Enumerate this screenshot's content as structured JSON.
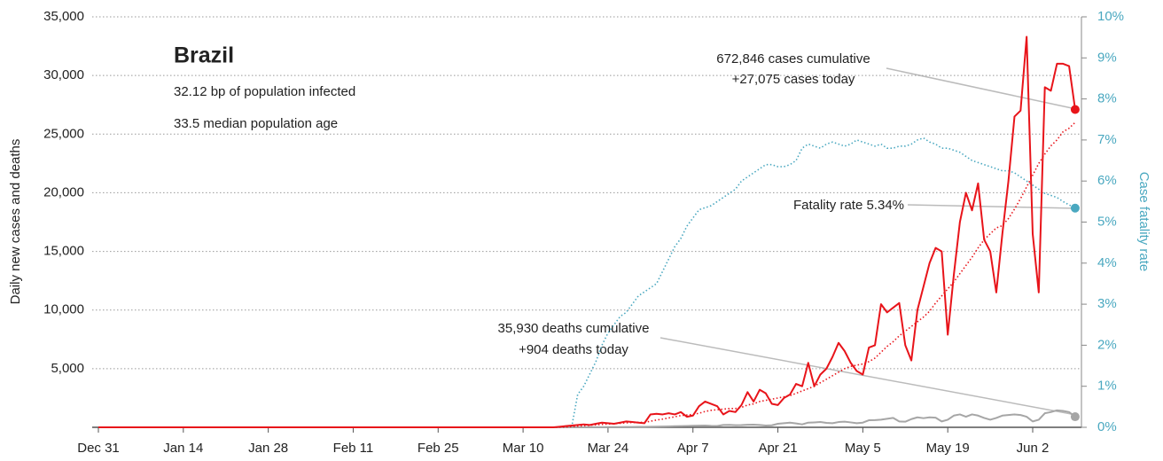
{
  "chart_data": {
    "type": "line",
    "title": "Brazil",
    "subtitle": [
      "32.12 bp of population infected",
      "33.5 median population age"
    ],
    "y_label": "Daily new cases and deaths",
    "y2_label": "Case fatality rate",
    "annotations": {
      "cases": [
        "672,846 cases cumulative",
        "+27,075 cases today"
      ],
      "fatality": "Fatality rate 5.34%",
      "deaths": [
        "35,930 deaths cumulative",
        "+904 deaths today"
      ]
    },
    "categories": [
      "Dec 31",
      null,
      null,
      null,
      null,
      null,
      null,
      null,
      null,
      null,
      null,
      null,
      null,
      null,
      "Jan 14",
      null,
      null,
      null,
      null,
      null,
      null,
      null,
      null,
      null,
      null,
      null,
      null,
      null,
      "Jan 28",
      null,
      null,
      null,
      null,
      null,
      null,
      null,
      null,
      null,
      null,
      null,
      null,
      null,
      "Feb 11",
      null,
      null,
      null,
      null,
      null,
      null,
      null,
      null,
      null,
      null,
      null,
      null,
      null,
      "Feb 25",
      null,
      null,
      null,
      null,
      null,
      null,
      null,
      null,
      null,
      null,
      null,
      null,
      null,
      "Mar 10",
      null,
      null,
      null,
      null,
      null,
      null,
      null,
      null,
      null,
      null,
      null,
      null,
      null,
      "Mar 24",
      null,
      null,
      null,
      null,
      null,
      null,
      null,
      null,
      null,
      null,
      null,
      null,
      null,
      "Apr 7",
      null,
      null,
      null,
      null,
      null,
      null,
      null,
      null,
      null,
      null,
      null,
      null,
      null,
      "Apr 21",
      null,
      null,
      null,
      null,
      null,
      null,
      null,
      null,
      null,
      null,
      null,
      null,
      null,
      "May 5",
      null,
      null,
      null,
      null,
      null,
      null,
      null,
      null,
      null,
      null,
      null,
      null,
      null,
      "May 19",
      null,
      null,
      null,
      null,
      null,
      null,
      null,
      null,
      null,
      null,
      null,
      null,
      null,
      "Jun 2",
      null,
      null,
      null,
      null,
      null,
      null,
      null
    ],
    "ylim": [
      0,
      35000
    ],
    "yticks": [
      {
        "value": 5000,
        "label": "5,000"
      },
      {
        "value": 10000,
        "label": "10,000"
      },
      {
        "value": 15000,
        "label": "15,000"
      },
      {
        "value": 20000,
        "label": "20,000"
      },
      {
        "value": 25000,
        "label": "25,000"
      },
      {
        "value": 30000,
        "label": "30,000"
      },
      {
        "value": 35000,
        "label": "35,000"
      }
    ],
    "y2lim": [
      0,
      10
    ],
    "y2ticks": [
      {
        "value": 0,
        "label": "0%"
      },
      {
        "value": 1,
        "label": "1%"
      },
      {
        "value": 2,
        "label": "2%"
      },
      {
        "value": 3,
        "label": "3%"
      },
      {
        "value": 4,
        "label": "4%"
      },
      {
        "value": 5,
        "label": "5%"
      },
      {
        "value": 6,
        "label": "6%"
      },
      {
        "value": 7,
        "label": "7%"
      },
      {
        "value": 8,
        "label": "8%"
      },
      {
        "value": 9,
        "label": "9%"
      },
      {
        "value": 10,
        "label": "10%"
      }
    ],
    "grid": true,
    "series": [
      {
        "color": "#e8141a",
        "style": "solid",
        "end_marker": true,
        "values": [
          0,
          0,
          0,
          0,
          0,
          0,
          0,
          0,
          0,
          0,
          0,
          0,
          0,
          0,
          0,
          0,
          0,
          0,
          0,
          0,
          0,
          0,
          0,
          0,
          0,
          0,
          0,
          0,
          0,
          0,
          0,
          0,
          0,
          0,
          0,
          0,
          0,
          0,
          0,
          0,
          0,
          0,
          0,
          0,
          0,
          0,
          0,
          0,
          0,
          0,
          0,
          0,
          0,
          0,
          0,
          0,
          0,
          0,
          0,
          0,
          0,
          0,
          0,
          0,
          0,
          0,
          0,
          0,
          0,
          0,
          0,
          0,
          0,
          0,
          0,
          0,
          50,
          100,
          150,
          200,
          250,
          200,
          300,
          400,
          350,
          300,
          400,
          500,
          450,
          400,
          350,
          1100,
          1150,
          1100,
          1200,
          1100,
          1300,
          900,
          1000,
          1800,
          2200,
          2000,
          1800,
          1100,
          1400,
          1300,
          1900,
          3000,
          2200,
          3200,
          2900,
          2000,
          1900,
          2500,
          2800,
          3700,
          3500,
          5500,
          3500,
          4500,
          5000,
          6000,
          7200,
          6500,
          5500,
          4800,
          4500,
          6800,
          7000,
          10500,
          9800,
          10200,
          10600,
          7000,
          5700,
          10000,
          12000,
          14000,
          15300,
          15000,
          7900,
          13000,
          17500,
          20000,
          18500,
          20800,
          16000,
          15000,
          11500,
          16500,
          21000,
          26500,
          27000,
          33300,
          16500,
          11500,
          29000,
          28700,
          31000,
          31000,
          30800,
          27100
        ]
      },
      {
        "color": "#e8141a",
        "style": "dotted",
        "end_marker": false,
        "values": [
          0,
          0,
          0,
          0,
          0,
          0,
          0,
          0,
          0,
          0,
          0,
          0,
          0,
          0,
          0,
          0,
          0,
          0,
          0,
          0,
          0,
          0,
          0,
          0,
          0,
          0,
          0,
          0,
          0,
          0,
          0,
          0,
          0,
          0,
          0,
          0,
          0,
          0,
          0,
          0,
          0,
          0,
          0,
          0,
          0,
          0,
          0,
          0,
          0,
          0,
          0,
          0,
          0,
          0,
          0,
          0,
          0,
          0,
          0,
          0,
          0,
          0,
          0,
          0,
          0,
          0,
          0,
          0,
          0,
          0,
          0,
          0,
          0,
          0,
          0,
          0,
          10,
          30,
          60,
          100,
          140,
          170,
          210,
          250,
          280,
          310,
          340,
          380,
          410,
          420,
          420,
          520,
          620,
          700,
          800,
          900,
          1000,
          1050,
          1100,
          1200,
          1350,
          1450,
          1500,
          1550,
          1600,
          1600,
          1700,
          1900,
          2000,
          2200,
          2300,
          2400,
          2500,
          2600,
          2700,
          2900,
          3100,
          3300,
          3500,
          3800,
          4100,
          4400,
          4700,
          5000,
          5200,
          5300,
          5400,
          5600,
          5900,
          6400,
          6900,
          7300,
          7800,
          8200,
          8600,
          9000,
          9400,
          9900,
          10600,
          11200,
          11800,
          12400,
          13100,
          13800,
          14500,
          15300,
          16000,
          16500,
          17000,
          17200,
          17800,
          18600,
          19500,
          20500,
          21500,
          22500,
          23300,
          24000,
          24500,
          25200,
          25500,
          26000
        ]
      },
      {
        "color": "#a6a6a6",
        "style": "solid",
        "end_marker": true,
        "values": [
          0,
          0,
          0,
          0,
          0,
          0,
          0,
          0,
          0,
          0,
          0,
          0,
          0,
          0,
          0,
          0,
          0,
          0,
          0,
          0,
          0,
          0,
          0,
          0,
          0,
          0,
          0,
          0,
          0,
          0,
          0,
          0,
          0,
          0,
          0,
          0,
          0,
          0,
          0,
          0,
          0,
          0,
          0,
          0,
          0,
          0,
          0,
          0,
          0,
          0,
          0,
          0,
          0,
          0,
          0,
          0,
          0,
          0,
          0,
          0,
          0,
          0,
          0,
          0,
          0,
          0,
          0,
          0,
          0,
          0,
          0,
          0,
          0,
          0,
          0,
          0,
          0,
          1,
          2,
          3,
          5,
          7,
          10,
          12,
          15,
          20,
          22,
          25,
          30,
          35,
          40,
          45,
          60,
          70,
          80,
          90,
          100,
          110,
          130,
          140,
          150,
          120,
          110,
          200,
          210,
          180,
          190,
          220,
          230,
          200,
          150,
          170,
          300,
          350,
          400,
          330,
          250,
          400,
          420,
          450,
          380,
          350,
          450,
          480,
          420,
          350,
          400,
          600,
          610,
          650,
          730,
          800,
          500,
          480,
          700,
          850,
          780,
          850,
          820,
          500,
          650,
          1000,
          1100,
          900,
          1100,
          1000,
          800,
          650,
          800,
          1000,
          1050,
          1100,
          1050,
          900,
          500,
          650,
          1200,
          1300,
          1450,
          1400,
          1300,
          904
        ]
      },
      {
        "color": "#4aa8c0",
        "style": "dotted",
        "end_marker": true,
        "axis": "y2",
        "values": [
          null,
          null,
          null,
          null,
          null,
          null,
          null,
          null,
          null,
          null,
          null,
          null,
          null,
          null,
          null,
          null,
          null,
          null,
          null,
          null,
          null,
          null,
          null,
          null,
          null,
          null,
          null,
          null,
          null,
          null,
          null,
          null,
          null,
          null,
          null,
          null,
          null,
          null,
          null,
          null,
          null,
          null,
          null,
          null,
          null,
          null,
          null,
          null,
          null,
          null,
          null,
          null,
          null,
          null,
          null,
          null,
          null,
          null,
          null,
          null,
          null,
          null,
          null,
          null,
          null,
          null,
          null,
          null,
          null,
          null,
          null,
          null,
          null,
          null,
          null,
          null,
          null,
          null,
          0,
          0.8,
          1.0,
          1.3,
          1.6,
          2.0,
          2.3,
          2.5,
          2.7,
          2.8,
          3.0,
          3.2,
          3.3,
          3.4,
          3.5,
          3.8,
          4.1,
          4.4,
          4.6,
          4.9,
          5.1,
          5.3,
          5.35,
          5.4,
          5.5,
          5.6,
          5.7,
          5.8,
          6.0,
          6.1,
          6.2,
          6.3,
          6.4,
          6.4,
          6.35,
          6.35,
          6.4,
          6.5,
          6.8,
          6.9,
          6.85,
          6.8,
          6.9,
          6.95,
          6.9,
          6.85,
          6.9,
          7.0,
          6.95,
          6.9,
          6.85,
          6.9,
          6.8,
          6.8,
          6.85,
          6.85,
          6.9,
          7.0,
          7.05,
          6.95,
          6.9,
          6.8,
          6.8,
          6.75,
          6.7,
          6.6,
          6.5,
          6.45,
          6.4,
          6.35,
          6.3,
          6.25,
          6.25,
          6.2,
          6.1,
          6.0,
          5.9,
          5.8,
          5.7,
          5.65,
          5.6,
          5.5,
          5.42,
          5.34
        ]
      }
    ]
  }
}
